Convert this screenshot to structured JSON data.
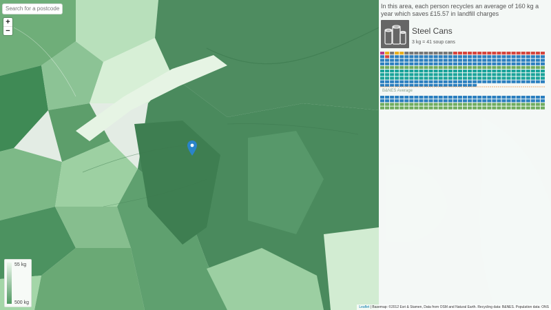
{
  "search": {
    "placeholder": "Search for a postcode"
  },
  "zoom": {
    "in_label": "+",
    "out_label": "−"
  },
  "legend": {
    "low_label": "55 kg",
    "high_label": "500 kg",
    "gradient_light": "#ecf7ec",
    "gradient_dark": "#4f9961"
  },
  "panel": {
    "headline": "In this area, each person recycles an average of 160 kg a year which saves £15.57 in landfill charges",
    "material_title": "Steel Cans",
    "material_subtitle": "3 kg = 41 soup cans",
    "average_label": "B&NES Average",
    "icon": "steel-cans-icon"
  },
  "attribution": {
    "leaflet": "Leaflet",
    "text": " | Basemap: ©2012 Esri & Stamen, Data from OSM and Natural Earth. Recycling data: B&NES. Population data: ONS"
  },
  "colors": {
    "grey": "#777777",
    "magenta": "#b83a8a",
    "yellow": "#e8ad1c",
    "red": "#d6453d",
    "blue": "#2b7fbf",
    "teal": "#1aa39a",
    "green": "#6fac5f",
    "divider": "#f0a86a"
  },
  "area_waffle_rows": [
    [
      [
        "magenta",
        1
      ],
      [
        "yellow",
        1
      ],
      [
        "grey",
        1
      ],
      [
        "yellow",
        2
      ],
      [
        "grey",
        10
      ],
      [
        "red",
        19
      ]
    ],
    [
      [
        "blue",
        1
      ],
      [
        "red",
        1
      ],
      [
        "blue",
        32
      ]
    ],
    [
      [
        "blue",
        34
      ]
    ],
    [
      [
        "blue",
        34
      ]
    ],
    [
      [
        "green",
        34
      ]
    ],
    [
      [
        "teal",
        34
      ]
    ],
    [
      [
        "teal",
        34
      ]
    ],
    [
      [
        "teal",
        34
      ]
    ],
    [
      [
        "blue",
        34
      ]
    ],
    [
      [
        "blue",
        20
      ]
    ]
  ],
  "average_waffle_rows": [
    [
      [
        "blue",
        14
      ],
      [
        "blue",
        20
      ]
    ],
    [
      [
        "blue",
        10
      ],
      [
        "blue",
        24
      ]
    ],
    [
      [
        "green",
        34
      ]
    ],
    [
      [
        "green",
        34
      ]
    ]
  ]
}
